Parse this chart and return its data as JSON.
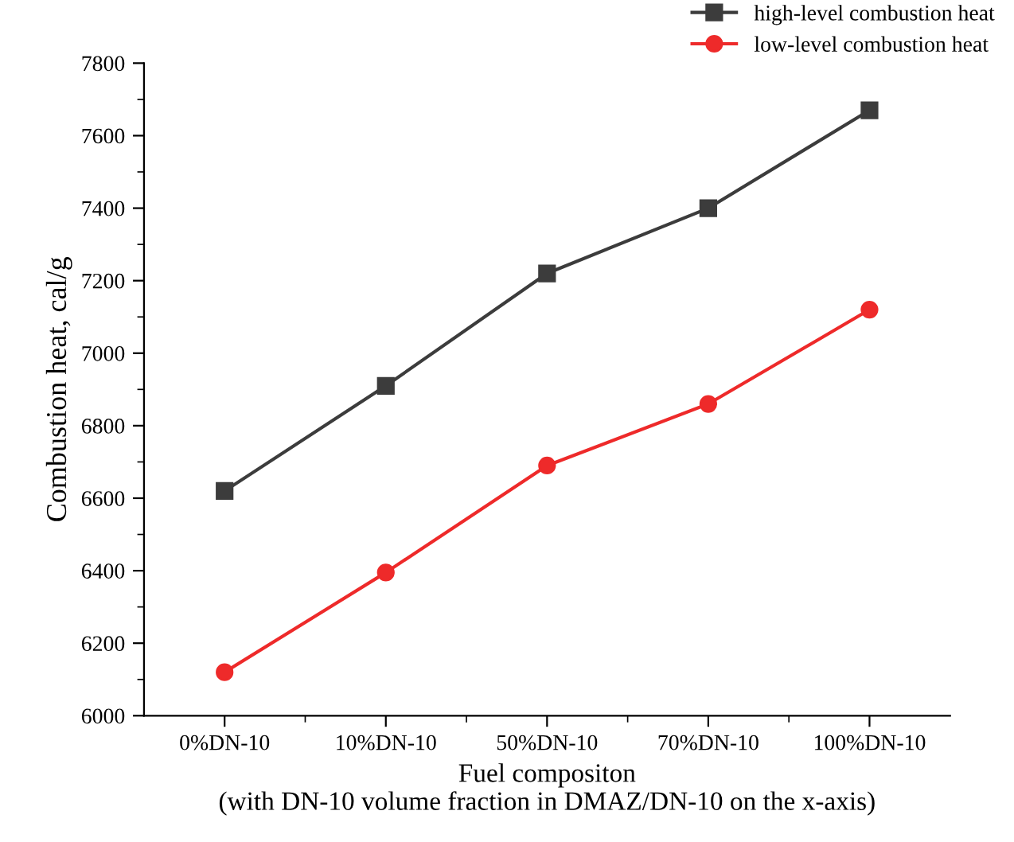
{
  "chart_data": {
    "type": "line",
    "xlabel": "Fuel compositon\n(with DN-10 volume fraction in DMAZ/DN-10 on the x-axis)",
    "ylabel": "Combustion heat, cal/g",
    "categories": [
      "0%DN-10",
      "10%DN-10",
      "50%DN-10",
      "70%DN-10",
      "100%DN-10"
    ],
    "series": [
      {
        "name": "high-level combustion heat",
        "color": "#3c3c3c",
        "marker": "square",
        "values": [
          6620,
          6910,
          7220,
          7400,
          7670
        ]
      },
      {
        "name": "low-level combustion heat",
        "color": "#ee2a2a",
        "marker": "circle",
        "values": [
          6120,
          6395,
          6690,
          6860,
          7120
        ]
      }
    ],
    "ylim": [
      6000,
      7800
    ],
    "yticks": [
      6000,
      6200,
      6400,
      6600,
      6800,
      7000,
      7200,
      7400,
      7600,
      7800
    ],
    "grid": false,
    "legend": "top right",
    "line_style": "solid"
  }
}
